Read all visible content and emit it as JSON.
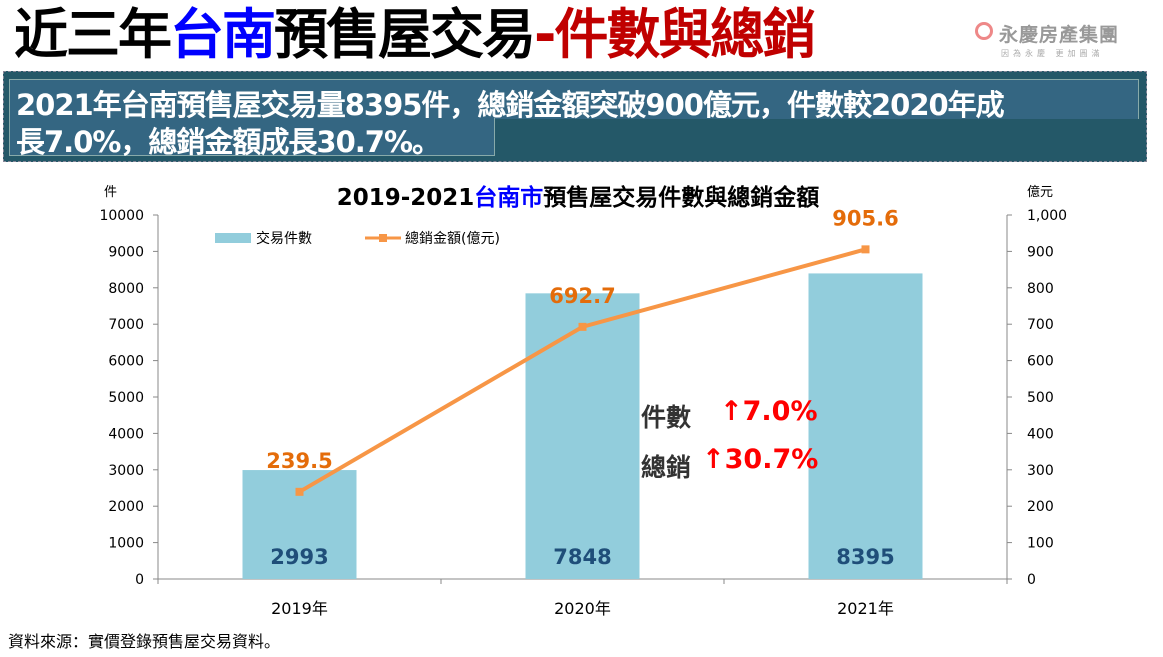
{
  "header": {
    "title_part1": "近三年",
    "title_part2": "台南",
    "title_part3": "預售屋交易",
    "title_part4": "-件數與總銷"
  },
  "logo": {
    "name": "永慶房產集團",
    "slogan": "因為永慶 更加圓滿"
  },
  "banner": {
    "line1": "2021年台南預售屋交易量8395件，總銷金額突破900億元，件數較2020年成",
    "line2": "長7.0%，總銷金額成長30.7%。"
  },
  "annotations": {
    "count_label": "件數",
    "count_change": "↑7.0%",
    "sales_label": "總銷",
    "sales_change": "↑30.7%"
  },
  "source": "資料來源：實價登錄預售屋交易資料。",
  "chart_data": {
    "type": "bar+line",
    "title_part1": "2019-2021",
    "title_part2": "台南市",
    "title_part3": "預售屋交易件數與總銷金額",
    "ylabel_left": "件",
    "ylabel_right": "億元",
    "categories": [
      "2019年",
      "2020年",
      "2021年"
    ],
    "ylim_left": [
      0,
      10000
    ],
    "yticks_left": [
      "0",
      "1000",
      "2000",
      "3000",
      "4000",
      "5000",
      "6000",
      "7000",
      "8000",
      "9000",
      "10000"
    ],
    "ylim_right": [
      0,
      1000
    ],
    "yticks_right": [
      "0",
      "100",
      "200",
      "300",
      "400",
      "500",
      "600",
      "700",
      "800",
      "900",
      "1,000"
    ],
    "series": [
      {
        "name": "交易件數",
        "type": "bar",
        "axis": "left",
        "values": [
          2993,
          7848,
          8395
        ],
        "labels": [
          "2993",
          "7848",
          "8395"
        ],
        "color": "#92cddc",
        "label_color": "#1f4e79"
      },
      {
        "name": "總銷金額(億元)",
        "type": "line",
        "axis": "right",
        "values": [
          239.5,
          692.7,
          905.6
        ],
        "labels": [
          "239.5",
          "692.7",
          "905.6"
        ],
        "color": "#f79646",
        "label_color": "#e46c0a"
      }
    ],
    "grid": false,
    "legend": "top-left"
  }
}
